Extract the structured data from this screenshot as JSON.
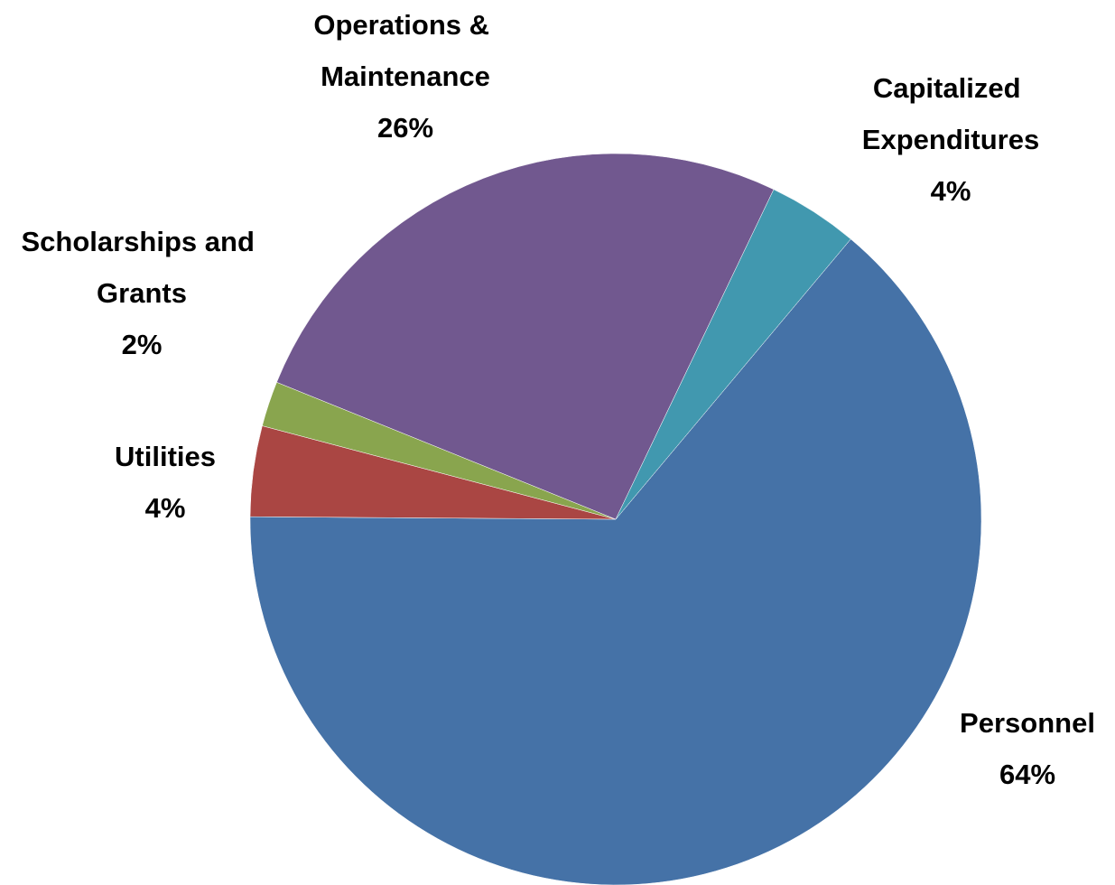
{
  "chart_data": {
    "type": "pie",
    "categories": [
      "Personnel",
      "Utilities",
      "Scholarships and Grants",
      "Operations & Maintenance",
      "Capitalized Expenditures"
    ],
    "values": [
      64,
      4,
      2,
      26,
      4
    ],
    "value_labels": [
      "64%",
      "4%",
      "2%",
      "26%",
      "4%"
    ],
    "colors": [
      "#4572a7",
      "#aa4643",
      "#89a54e",
      "#71588f",
      "#4198af"
    ]
  }
}
